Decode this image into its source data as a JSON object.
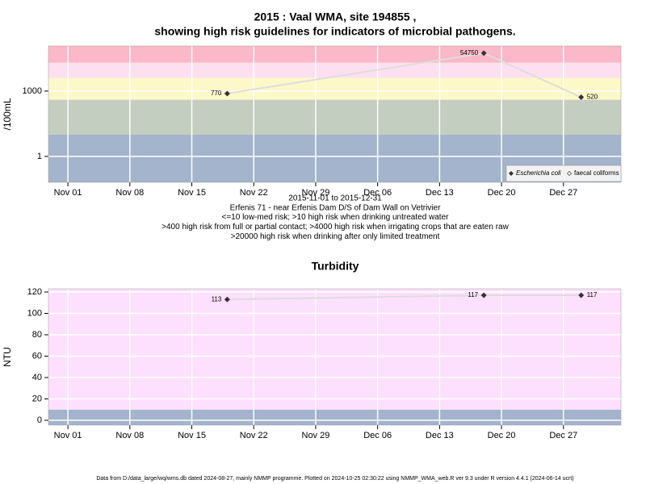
{
  "chart_data": [
    {
      "type": "line",
      "title": "2015 : Vaal WMA, site 194855 ,",
      "subtitle": "showing high risk guidelines for indicators of microbial pathogens.",
      "y_label": "/100mL",
      "log_y": true,
      "grid": true,
      "legend": "bottom-right",
      "notes": [
        "2015-11-01 to 2015-12-31",
        "Erfenis 71 - near Erfenis Dam D/S of Dam Wall on Vetrivier",
        "<=10 low-med risk; >10 high risk when drinking untreated water",
        ">400 high risk from full or partial contact; >4000 high risk when irrigating crops that are eaten raw",
        ">20000 high risk when drinking after only limited treatment"
      ],
      "x": [
        18,
        47,
        58
      ],
      "xlim": [
        -2.2,
        62.5
      ],
      "xticks": [
        {
          "value": 0,
          "label": "Nov 01"
        },
        {
          "value": 7,
          "label": "Nov 08"
        },
        {
          "value": 14,
          "label": "Nov 15"
        },
        {
          "value": 21,
          "label": "Nov 22"
        },
        {
          "value": 28,
          "label": "Nov 29"
        },
        {
          "value": 35,
          "label": "Dec 06"
        },
        {
          "value": 42,
          "label": "Dec 13"
        },
        {
          "value": 49,
          "label": "Dec 20"
        },
        {
          "value": 56,
          "label": "Dec 27"
        }
      ],
      "ylim": [
        0.065,
        117000
      ],
      "yticks": [
        1,
        1000
      ],
      "bands": [
        {
          "lower": 0.065,
          "upper": 10,
          "color": "#a3b4cc"
        },
        {
          "lower": 10,
          "upper": 400,
          "color": "#c3cdc0"
        },
        {
          "lower": 400,
          "upper": 4000,
          "color": "#fdf8c8"
        },
        {
          "lower": 4000,
          "upper": 20000,
          "color": "#fde0f0"
        },
        {
          "lower": 20000,
          "upper": 117000,
          "color": "#fbb8c8"
        }
      ],
      "series": [
        {
          "name": "Escherichia coli",
          "color": "#333333",
          "values": [
            770,
            54750,
            520
          ]
        },
        {
          "name": "faecal coliforms",
          "color": "#333333",
          "values": [
            null,
            null,
            null
          ]
        }
      ]
    },
    {
      "type": "line",
      "title": "Turbidity",
      "y_label": "NTU",
      "log_y": false,
      "grid": true,
      "x": [
        18,
        47,
        58
      ],
      "xlim": [
        -2.2,
        62.5
      ],
      "xticks": [
        {
          "value": 0,
          "label": "Nov 01"
        },
        {
          "value": 7,
          "label": "Nov 08"
        },
        {
          "value": 14,
          "label": "Nov 15"
        },
        {
          "value": 21,
          "label": "Nov 22"
        },
        {
          "value": 28,
          "label": "Nov 29"
        },
        {
          "value": 35,
          "label": "Dec 06"
        },
        {
          "value": 42,
          "label": "Dec 13"
        },
        {
          "value": 49,
          "label": "Dec 20"
        },
        {
          "value": 56,
          "label": "Dec 27"
        }
      ],
      "ylim": [
        -4.5,
        123
      ],
      "yticks": [
        0,
        20,
        40,
        60,
        80,
        100,
        120
      ],
      "bands": [
        {
          "lower": -4.5,
          "upper": 10,
          "color": "#a3b4cc"
        },
        {
          "lower": 10,
          "upper": 123,
          "color": "#fde0fd"
        }
      ],
      "series": [
        {
          "name": "Turbidity",
          "color": "#333333",
          "values": [
            113,
            117,
            117
          ]
        }
      ]
    }
  ],
  "footer": "Data from D:/data_large/wq/wms.db dated 2024-08-27, mainly NMMP programme. Plotted on 2024-10-25 02:30:22 using NMMP_WMA_web.R ver 9.3 under R version 4.4.1 (2024-06-14 ucrt)"
}
